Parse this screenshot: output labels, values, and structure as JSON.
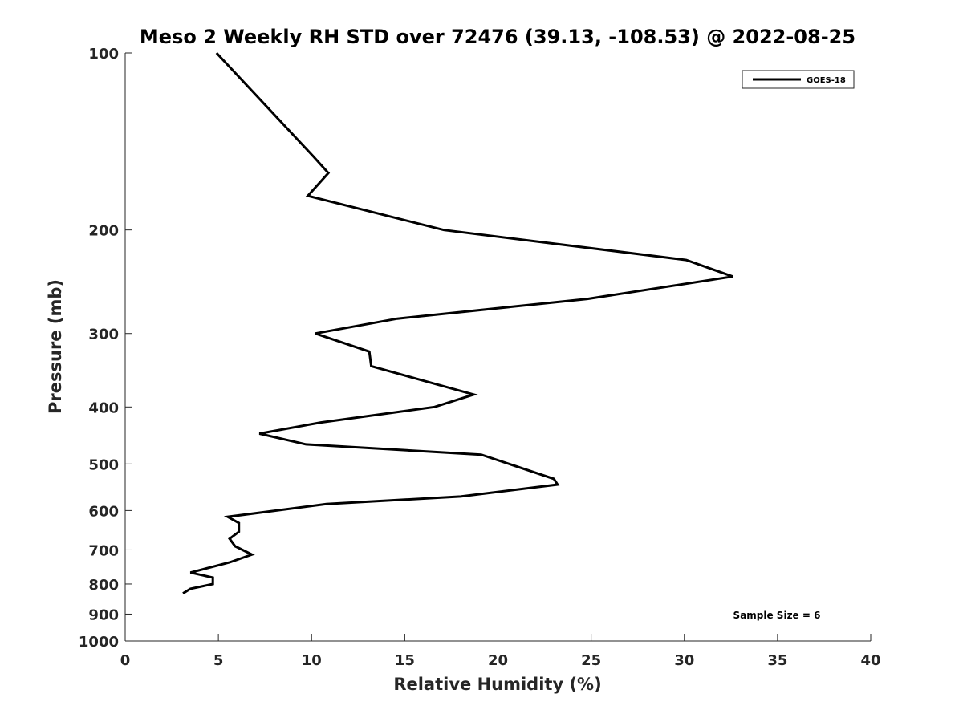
{
  "chart_data": {
    "type": "line",
    "title": "Meso 2 Weekly RH STD over 72476 (39.13, -108.53) @ 2022-08-25",
    "xlabel": "Relative Humidity (%)",
    "ylabel": "Pressure (mb)",
    "xlim": [
      0,
      40
    ],
    "ylim": [
      100,
      1000
    ],
    "y_scale": "log",
    "y_reversed": true,
    "x_ticks": [
      0,
      5,
      10,
      15,
      20,
      25,
      30,
      35,
      40
    ],
    "x_tick_labels": [
      "0",
      "5",
      "10",
      "15",
      "20",
      "25",
      "30",
      "35",
      "40"
    ],
    "y_ticks": [
      100,
      200,
      300,
      400,
      500,
      600,
      700,
      800,
      900,
      1000
    ],
    "y_tick_labels": [
      "100",
      "200",
      "300",
      "400",
      "500",
      "600",
      "700",
      "800",
      "900",
      "1000"
    ],
    "grid": false,
    "legend": {
      "position": "top-right",
      "entries": [
        "GOES-18"
      ]
    },
    "annotation": "Sample Size = 6",
    "series": [
      {
        "name": "GOES-18",
        "color": "#000000",
        "x": [
          4.9,
          10.1,
          10.9,
          9.8,
          17.1,
          30.1,
          32.6,
          24.8,
          14.6,
          10.2,
          13.1,
          13.2,
          16.3,
          18.7,
          16.6,
          10.5,
          7.2,
          9.7,
          19.1,
          23.0,
          23.2,
          18.0,
          10.8,
          5.5,
          6.1,
          6.1,
          5.6,
          5.9,
          6.8,
          5.6,
          3.5,
          4.7,
          4.7,
          3.5,
          3.1
        ],
        "y": [
          100,
          150,
          160,
          175,
          200,
          225,
          240,
          262,
          283,
          300,
          322,
          341,
          363,
          381,
          400,
          425,
          444,
          463,
          482,
          530,
          542,
          568,
          585,
          615,
          630,
          652,
          670,
          690,
          713,
          735,
          765,
          780,
          800,
          815,
          830
        ]
      }
    ]
  }
}
